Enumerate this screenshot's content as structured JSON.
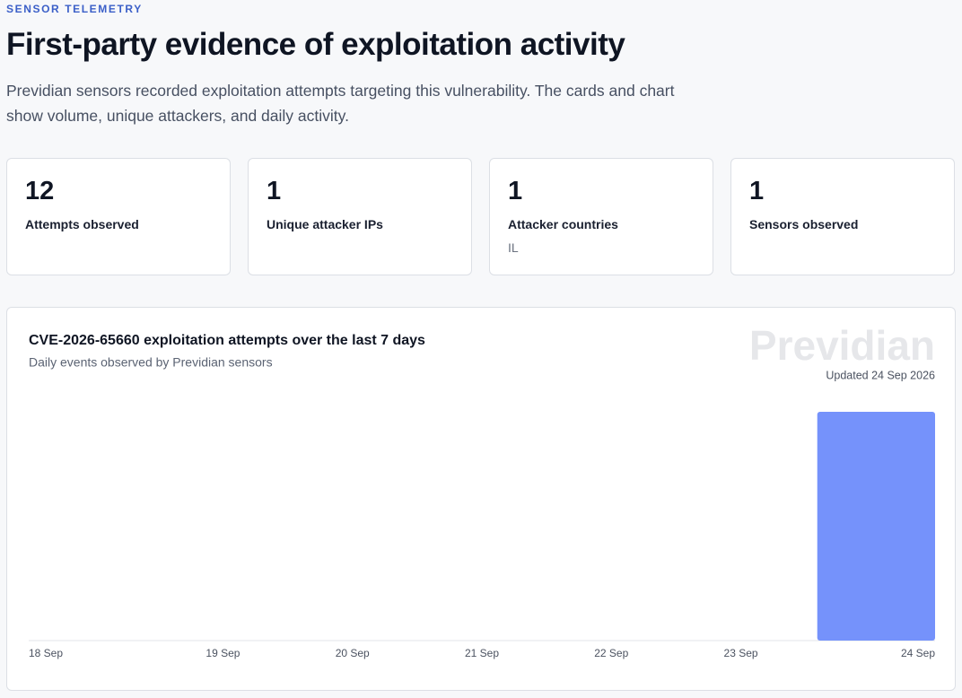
{
  "header": {
    "eyebrow": "SENSOR TELEMETRY",
    "title": "First-party evidence of exploitation activity",
    "description": "Previdian sensors recorded exploitation attempts targeting this vulnerability. The cards and chart show volume, unique attackers, and daily activity."
  },
  "cards": [
    {
      "value": 12,
      "label": "Attempts observed"
    },
    {
      "value": 1,
      "label": "Unique attacker IPs"
    },
    {
      "value": 1,
      "label": "Attacker countries",
      "detail": "IL"
    },
    {
      "value": 1,
      "label": "Sensors observed"
    }
  ],
  "chart_data": {
    "type": "bar",
    "title": "CVE-2026-65660 exploitation attempts over the last 7 days",
    "subtitle": "Daily events observed by Previdian sensors",
    "watermark": "Previdian",
    "updated": "Updated 24 Sep 2026",
    "categories": [
      "18 Sep",
      "19 Sep",
      "20 Sep",
      "21 Sep",
      "22 Sep",
      "23 Sep",
      "24 Sep"
    ],
    "values": [
      0,
      0,
      0,
      0,
      0,
      0,
      12
    ],
    "color": "#7592fb"
  }
}
